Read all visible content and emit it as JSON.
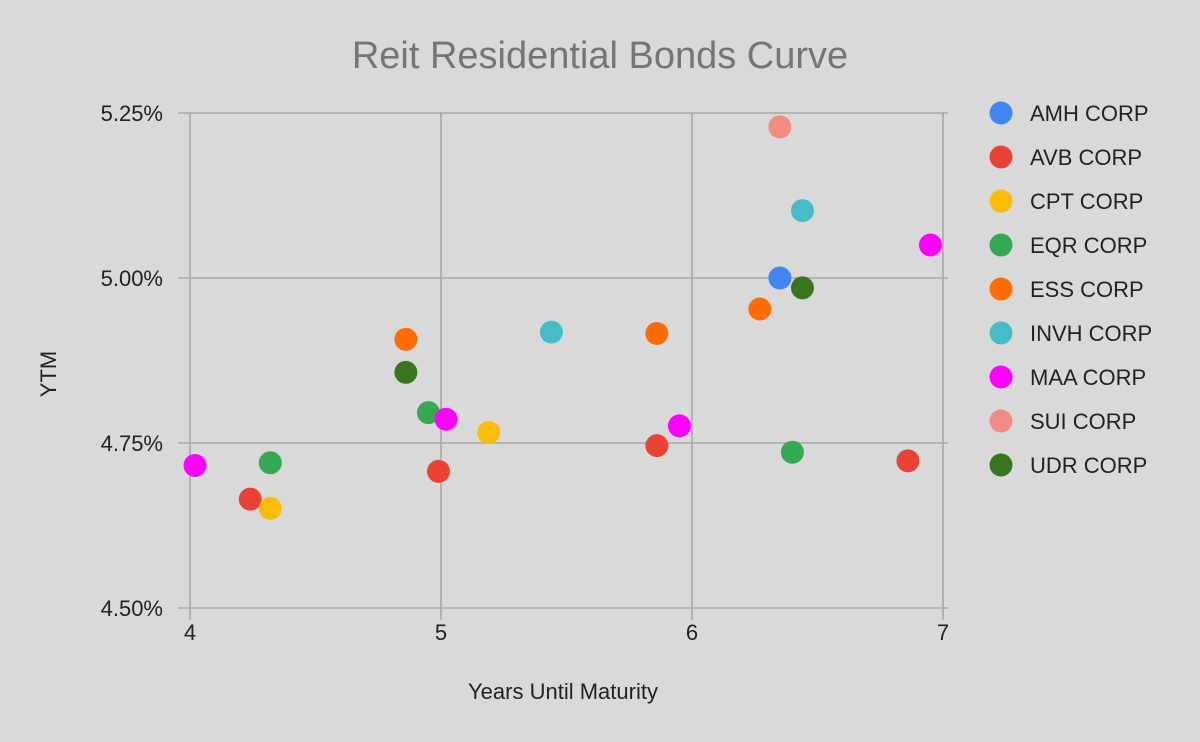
{
  "chart_data": {
    "type": "scatter",
    "title": "Reit Residential Bonds Curve",
    "xlabel": "Years Until Maturity",
    "ylabel": "YTM",
    "xlim": [
      4,
      7
    ],
    "ylim": [
      4.5,
      5.25
    ],
    "x_ticks": [
      {
        "value": 4,
        "label": "4"
      },
      {
        "value": 5,
        "label": "5"
      },
      {
        "value": 6,
        "label": "6"
      },
      {
        "value": 7,
        "label": "7"
      }
    ],
    "y_ticks": [
      {
        "value": 4.5,
        "label": "4.50%"
      },
      {
        "value": 4.75,
        "label": "4.75%"
      },
      {
        "value": 5.0,
        "label": "5.00%"
      },
      {
        "value": 5.25,
        "label": "5.25%"
      }
    ],
    "grid": true,
    "legend_position": "right",
    "series": [
      {
        "name": "AMH CORP",
        "color": "#4285f4",
        "points": [
          [
            6.35,
            5.0
          ]
        ]
      },
      {
        "name": "AVB CORP",
        "color": "#ea4335",
        "points": [
          [
            4.24,
            4.665
          ],
          [
            4.99,
            4.707
          ],
          [
            5.86,
            4.746
          ],
          [
            6.86,
            4.723
          ]
        ]
      },
      {
        "name": "CPT CORP",
        "color": "#fbbc04",
        "points": [
          [
            4.32,
            4.651
          ],
          [
            5.19,
            4.766
          ]
        ]
      },
      {
        "name": "EQR CORP",
        "color": "#34a853",
        "points": [
          [
            4.32,
            4.72
          ],
          [
            4.95,
            4.796
          ],
          [
            6.4,
            4.736
          ]
        ]
      },
      {
        "name": "ESS CORP",
        "color": "#ff6d01",
        "points": [
          [
            4.86,
            4.907
          ],
          [
            5.86,
            4.916
          ],
          [
            6.27,
            4.953
          ]
        ]
      },
      {
        "name": "INVH CORP",
        "color": "#46bdc6",
        "points": [
          [
            5.44,
            4.918
          ],
          [
            6.44,
            5.102
          ]
        ]
      },
      {
        "name": "MAA CORP",
        "color": "#ff00ff",
        "points": [
          [
            4.02,
            4.716
          ],
          [
            5.02,
            4.786
          ],
          [
            5.95,
            4.776
          ],
          [
            6.95,
            5.05
          ]
        ]
      },
      {
        "name": "SUI CORP",
        "color": "#f28b82",
        "points": [
          [
            6.35,
            5.229
          ]
        ]
      },
      {
        "name": "UDR CORP",
        "color": "#38761d",
        "points": [
          [
            4.86,
            4.857
          ],
          [
            6.44,
            4.985
          ]
        ]
      }
    ]
  }
}
